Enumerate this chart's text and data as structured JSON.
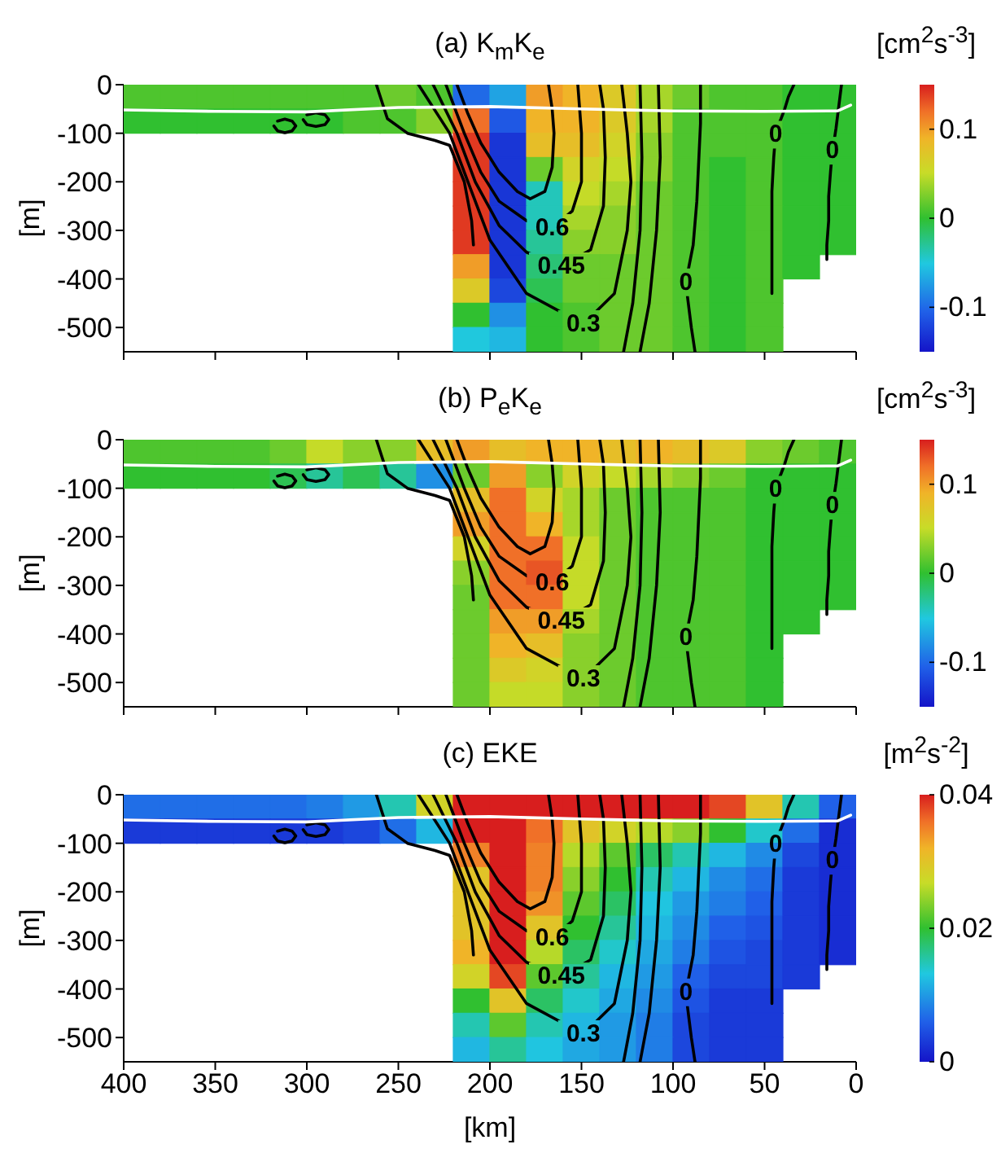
{
  "chart_data": [
    {
      "type": "heatmap",
      "title": "(a) K$_{m}$K$_{e}$",
      "ylabel": "[m]",
      "clabel": "[cm$^{2}$s$^{-3}$]",
      "xlim": [
        400,
        0
      ],
      "xticks": [
        400,
        350,
        300,
        250,
        200,
        150,
        100,
        50,
        0
      ],
      "ylim": [
        -550,
        0
      ],
      "yticks": [
        -500,
        -400,
        -300,
        -200,
        -100,
        0
      ],
      "clim": [
        -0.15,
        0.15
      ],
      "cticks": [
        -0.1,
        0,
        0.1
      ],
      "tick_labels": "y",
      "cells": [
        [
          0.01,
          0.01,
          0.01,
          0.01,
          0.01,
          0.01,
          0.01,
          0.02,
          0.01,
          -0.1,
          -0.07,
          0.1,
          0.09,
          0.07,
          0.04,
          0.02,
          0.01,
          0.01,
          0,
          0
        ],
        [
          0,
          0,
          0,
          0,
          0,
          0,
          0.01,
          0.01,
          0.03,
          0.12,
          -0.11,
          0.09,
          0.09,
          0.07,
          0.04,
          0.01,
          0.01,
          0.01,
          0,
          0
        ],
        [
          null,
          null,
          null,
          null,
          null,
          null,
          null,
          null,
          null,
          0.14,
          -0.13,
          0.08,
          0.08,
          0.06,
          0.03,
          0.01,
          0.01,
          0.01,
          0,
          0
        ],
        [
          null,
          null,
          null,
          null,
          null,
          null,
          null,
          null,
          null,
          0.14,
          -0.13,
          0.02,
          0.06,
          0.05,
          0.03,
          0.01,
          0,
          0.01,
          0,
          0
        ],
        [
          null,
          null,
          null,
          null,
          null,
          null,
          null,
          null,
          null,
          0.14,
          -0.13,
          -0.04,
          0.05,
          0.04,
          0.02,
          0.01,
          0,
          0.01,
          0,
          0
        ],
        [
          null,
          null,
          null,
          null,
          null,
          null,
          null,
          null,
          null,
          0.14,
          -0.13,
          -0.04,
          0.04,
          0.03,
          0.02,
          0.01,
          0,
          0.01,
          0,
          0
        ],
        [
          null,
          null,
          null,
          null,
          null,
          null,
          null,
          null,
          null,
          0.14,
          -0.13,
          -0.03,
          0.03,
          0.03,
          0.02,
          0.01,
          0,
          0.01,
          0,
          0
        ],
        [
          null,
          null,
          null,
          null,
          null,
          null,
          null,
          null,
          null,
          0.1,
          -0.13,
          -0.02,
          0.02,
          0.02,
          0.02,
          0.01,
          0,
          0.01,
          0,
          null
        ],
        [
          null,
          null,
          null,
          null,
          null,
          null,
          null,
          null,
          null,
          0.07,
          -0.12,
          -0.01,
          0.02,
          0.02,
          0.02,
          0.01,
          0,
          0.01,
          null,
          null
        ],
        [
          null,
          null,
          null,
          null,
          null,
          null,
          null,
          null,
          null,
          0,
          -0.08,
          0,
          0.01,
          0.02,
          0.02,
          0.01,
          0,
          0.01,
          null,
          null
        ],
        [
          null,
          null,
          null,
          null,
          null,
          null,
          null,
          null,
          null,
          -0.05,
          -0.06,
          0,
          0.01,
          0.02,
          0.02,
          0.01,
          0,
          0.01,
          null,
          null
        ]
      ],
      "series": [
        {
          "type": "line",
          "color": "#000000",
          "x": [
            218,
            212,
            205,
            195,
            185,
            178,
            170,
            166,
            165,
            166,
            168
          ],
          "values": [
            0,
            -60,
            -120,
            -180,
            -220,
            -235,
            -220,
            -170,
            -100,
            -50,
            0
          ]
        },
        {
          "type": "line",
          "name": "0.6",
          "color": "#000000",
          "x": [
            224,
            214,
            205,
            195,
            180,
            166,
            155,
            150,
            150,
            151,
            152
          ],
          "values": [
            0,
            -100,
            -180,
            -240,
            -280,
            -295,
            -260,
            -200,
            -100,
            -50,
            0
          ]
        },
        {
          "type": "line",
          "name": "0.45",
          "color": "#000000",
          "x": [
            231,
            218,
            208,
            195,
            180,
            161,
            145,
            138,
            137,
            138,
            140
          ],
          "values": [
            0,
            -100,
            -200,
            -290,
            -345,
            -374,
            -340,
            -250,
            -150,
            -50,
            0
          ]
        },
        {
          "type": "line",
          "name": "0.3",
          "color": "#000000",
          "x": [
            239,
            222,
            212,
            200,
            180,
            149,
            132,
            125,
            123,
            125,
            128
          ],
          "values": [
            0,
            -100,
            -200,
            -320,
            -430,
            -493,
            -430,
            -300,
            -200,
            -100,
            0
          ]
        },
        {
          "type": "line",
          "color": "#000000",
          "x": [
            262,
            256,
            245,
            230,
            222,
            214,
            210,
            209
          ],
          "values": [
            0,
            -70,
            -100,
            -115,
            -125,
            -200,
            -280,
            -330
          ]
        },
        {
          "type": "line",
          "color": "#000000",
          "x": [
            118,
            117,
            118,
            122,
            127
          ],
          "values": [
            0,
            -150,
            -300,
            -450,
            -550
          ]
        },
        {
          "type": "line",
          "color": "#000000",
          "x": [
            108,
            107,
            109,
            113,
            118
          ],
          "values": [
            0,
            -150,
            -300,
            -450,
            -550
          ]
        },
        {
          "type": "line",
          "name": "0",
          "color": "#000000",
          "x": [
            85,
            85,
            86,
            87,
            89,
            93,
            92,
            91,
            90,
            89,
            88
          ],
          "values": [
            0,
            -80,
            -160,
            -240,
            -330,
            -407,
            -440,
            -470,
            -500,
            -525,
            -550
          ]
        },
        {
          "type": "line",
          "name": "0",
          "color": "#000000",
          "x": [
            34,
            37,
            39,
            41,
            43,
            44,
            45,
            46,
            46,
            46,
            46
          ],
          "values": [
            0,
            -25,
            -50,
            -70,
            -88,
            -103,
            -150,
            -220,
            -300,
            -370,
            -430
          ]
        },
        {
          "type": "line",
          "name": "0",
          "color": "#000000",
          "x": [
            8,
            9,
            10,
            11,
            12,
            13,
            14,
            15,
            15,
            16,
            16
          ],
          "values": [
            0,
            -30,
            -60,
            -90,
            -115,
            -136,
            -180,
            -230,
            -280,
            -330,
            -360
          ]
        },
        {
          "type": "line",
          "color": "#000000",
          "x": [
            318,
            316,
            312,
            308,
            306,
            308,
            312,
            316
          ],
          "values": [
            -85,
            -95,
            -99,
            -95,
            -85,
            -75,
            -71,
            -75
          ]
        },
        {
          "type": "line",
          "color": "#000000",
          "x": [
            302,
            300,
            295,
            290,
            288,
            290,
            295,
            300
          ],
          "values": [
            -72,
            -82,
            -86,
            -82,
            -72,
            -62,
            -58,
            -62
          ]
        },
        {
          "type": "line",
          "color": "#ffffff",
          "x": [
            400,
            350,
            300,
            250,
            200,
            150,
            100,
            50,
            10,
            3
          ],
          "values": [
            -52,
            -55,
            -56,
            -47,
            -45,
            -50,
            -54,
            -55,
            -54,
            -42
          ]
        }
      ]
    },
    {
      "type": "heatmap",
      "title": "(b) P$_{e}$K$_{e}$",
      "ylabel": "[m]",
      "clabel": "[cm$^{2}$s$^{-3}$]",
      "xlim": [
        400,
        0
      ],
      "xticks": [
        400,
        350,
        300,
        250,
        200,
        150,
        100,
        50,
        0
      ],
      "ylim": [
        -550,
        0
      ],
      "yticks": [
        -500,
        -400,
        -300,
        -200,
        -100,
        0
      ],
      "clim": [
        -0.15,
        0.15
      ],
      "cticks": [
        -0.1,
        0,
        0.1
      ],
      "tick_labels": "y",
      "cells": [
        [
          0.01,
          0.01,
          0.01,
          0.01,
          0.02,
          0.05,
          0.03,
          0.03,
          0.08,
          0.1,
          0.08,
          0.09,
          0.09,
          0.08,
          0.09,
          0.08,
          0.07,
          0.03,
          0.02,
          0.01
        ],
        [
          0,
          0,
          0,
          0,
          -0.01,
          -0.03,
          -0.01,
          -0.03,
          -0.08,
          0.02,
          0.1,
          0.03,
          0.06,
          0.05,
          0.04,
          0.03,
          0.02,
          0,
          0,
          0
        ],
        [
          null,
          null,
          null,
          null,
          null,
          null,
          null,
          null,
          null,
          0.08,
          0.12,
          0.06,
          0.04,
          0.02,
          0.01,
          0.01,
          0.01,
          0,
          0,
          0
        ],
        [
          null,
          null,
          null,
          null,
          null,
          null,
          null,
          null,
          null,
          0.1,
          0.12,
          0.09,
          0.04,
          0.02,
          0.01,
          0.01,
          0.01,
          0,
          0,
          0
        ],
        [
          null,
          null,
          null,
          null,
          null,
          null,
          null,
          null,
          null,
          0.06,
          0.12,
          0.12,
          0.05,
          0.02,
          0.01,
          0.01,
          0.01,
          0,
          0,
          0
        ],
        [
          null,
          null,
          null,
          null,
          null,
          null,
          null,
          null,
          null,
          0.03,
          0.12,
          0.13,
          0.05,
          0.02,
          0.01,
          0.01,
          0.01,
          0,
          0,
          0
        ],
        [
          null,
          null,
          null,
          null,
          null,
          null,
          null,
          null,
          null,
          0.02,
          0.12,
          0.12,
          0.05,
          0.02,
          0.01,
          0.01,
          0.01,
          0,
          0,
          0
        ],
        [
          null,
          null,
          null,
          null,
          null,
          null,
          null,
          null,
          null,
          0.02,
          0.1,
          0.1,
          0.04,
          0.02,
          0.01,
          0.01,
          0.01,
          0,
          0,
          null
        ],
        [
          null,
          null,
          null,
          null,
          null,
          null,
          null,
          null,
          null,
          0.02,
          0.09,
          0.08,
          0.03,
          0.02,
          0.01,
          0.01,
          0.01,
          0,
          null,
          null
        ],
        [
          null,
          null,
          null,
          null,
          null,
          null,
          null,
          null,
          null,
          0.02,
          0.07,
          0.06,
          0.03,
          0.02,
          0.01,
          0.01,
          0.01,
          0,
          null,
          null
        ],
        [
          null,
          null,
          null,
          null,
          null,
          null,
          null,
          null,
          null,
          0.02,
          0.05,
          0.05,
          0.03,
          0.02,
          0.01,
          0.01,
          0.01,
          0,
          null,
          null
        ]
      ],
      "series": [
        {
          "type": "line",
          "color": "#000000",
          "x": [
            218,
            212,
            205,
            195,
            185,
            178,
            170,
            166,
            165,
            166,
            168
          ],
          "values": [
            0,
            -60,
            -120,
            -180,
            -220,
            -235,
            -220,
            -170,
            -100,
            -50,
            0
          ]
        },
        {
          "type": "line",
          "name": "0.6",
          "color": "#000000",
          "x": [
            224,
            214,
            205,
            195,
            180,
            166,
            155,
            150,
            150,
            151,
            152
          ],
          "values": [
            0,
            -100,
            -180,
            -240,
            -280,
            -295,
            -260,
            -200,
            -100,
            -50,
            0
          ]
        },
        {
          "type": "line",
          "name": "0.45",
          "color": "#000000",
          "x": [
            231,
            218,
            208,
            195,
            180,
            161,
            145,
            138,
            137,
            138,
            140
          ],
          "values": [
            0,
            -100,
            -200,
            -290,
            -345,
            -374,
            -340,
            -250,
            -150,
            -50,
            0
          ]
        },
        {
          "type": "line",
          "name": "0.3",
          "color": "#000000",
          "x": [
            239,
            222,
            212,
            200,
            180,
            149,
            132,
            125,
            123,
            125,
            128
          ],
          "values": [
            0,
            -100,
            -200,
            -320,
            -430,
            -493,
            -430,
            -300,
            -200,
            -100,
            0
          ]
        },
        {
          "type": "line",
          "color": "#000000",
          "x": [
            262,
            256,
            245,
            230,
            222,
            214,
            210,
            209
          ],
          "values": [
            0,
            -70,
            -100,
            -115,
            -125,
            -200,
            -280,
            -330
          ]
        },
        {
          "type": "line",
          "color": "#000000",
          "x": [
            118,
            117,
            118,
            122,
            127
          ],
          "values": [
            0,
            -150,
            -300,
            -450,
            -550
          ]
        },
        {
          "type": "line",
          "color": "#000000",
          "x": [
            108,
            107,
            109,
            113,
            118
          ],
          "values": [
            0,
            -150,
            -300,
            -450,
            -550
          ]
        },
        {
          "type": "line",
          "name": "0",
          "color": "#000000",
          "x": [
            85,
            85,
            86,
            87,
            89,
            93,
            92,
            91,
            90,
            89,
            88
          ],
          "values": [
            0,
            -80,
            -160,
            -240,
            -330,
            -407,
            -440,
            -470,
            -500,
            -525,
            -550
          ]
        },
        {
          "type": "line",
          "name": "0",
          "color": "#000000",
          "x": [
            34,
            37,
            39,
            41,
            43,
            44,
            45,
            46,
            46,
            46,
            46
          ],
          "values": [
            0,
            -25,
            -50,
            -70,
            -88,
            -103,
            -150,
            -220,
            -300,
            -370,
            -430
          ]
        },
        {
          "type": "line",
          "name": "0",
          "color": "#000000",
          "x": [
            8,
            9,
            10,
            11,
            12,
            13,
            14,
            15,
            15,
            16,
            16
          ],
          "values": [
            0,
            -30,
            -60,
            -90,
            -115,
            -136,
            -180,
            -230,
            -280,
            -330,
            -360
          ]
        },
        {
          "type": "line",
          "color": "#000000",
          "x": [
            318,
            316,
            312,
            308,
            306,
            308,
            312,
            316
          ],
          "values": [
            -85,
            -95,
            -99,
            -95,
            -85,
            -75,
            -71,
            -75
          ]
        },
        {
          "type": "line",
          "color": "#000000",
          "x": [
            302,
            300,
            295,
            290,
            288,
            290,
            295,
            300
          ],
          "values": [
            -72,
            -82,
            -86,
            -82,
            -72,
            -62,
            -58,
            -62
          ]
        },
        {
          "type": "line",
          "color": "#ffffff",
          "x": [
            400,
            350,
            300,
            250,
            200,
            150,
            100,
            50,
            10,
            3
          ],
          "values": [
            -52,
            -55,
            -56,
            -47,
            -45,
            -50,
            -54,
            -55,
            -54,
            -42
          ]
        }
      ]
    },
    {
      "type": "heatmap",
      "title": "(c) EKE",
      "xlabel": "[km]",
      "ylabel": "[m]",
      "clabel": "[m$^{2}$s$^{-2}$]",
      "xlim": [
        400,
        0
      ],
      "xticks": [
        400,
        350,
        300,
        250,
        200,
        150,
        100,
        50,
        0
      ],
      "ylim": [
        -550,
        0
      ],
      "yticks": [
        -500,
        -400,
        -300,
        -200,
        -100,
        0
      ],
      "clim": [
        0,
        0.04
      ],
      "cticks": [
        0,
        0.02,
        0.04
      ],
      "cells": [
        [
          0.007,
          0.007,
          0.007,
          0.007,
          0.007,
          0.008,
          0.01,
          0.015,
          0.028,
          0.04,
          0.04,
          0.04,
          0.04,
          0.04,
          0.04,
          0.04,
          0.038,
          0.03,
          0.015,
          0.006
        ],
        [
          0.003,
          0.003,
          0.003,
          0.003,
          0.003,
          0.003,
          0.004,
          0.007,
          0.012,
          0.04,
          0.04,
          0.036,
          0.03,
          0.028,
          0.026,
          0.024,
          0.02,
          0.014,
          0.007,
          0.002
        ],
        [
          null,
          null,
          null,
          null,
          null,
          null,
          null,
          null,
          null,
          0.035,
          0.04,
          0.035,
          0.026,
          0.022,
          0.018,
          0.015,
          0.012,
          0.009,
          0.004,
          0.002
        ],
        [
          null,
          null,
          null,
          null,
          null,
          null,
          null,
          null,
          null,
          0.03,
          0.04,
          0.035,
          0.024,
          0.02,
          0.015,
          0.012,
          0.009,
          0.007,
          0.003,
          0.002
        ],
        [
          null,
          null,
          null,
          null,
          null,
          null,
          null,
          null,
          null,
          0.03,
          0.04,
          0.034,
          0.022,
          0.018,
          0.013,
          0.01,
          0.008,
          0.006,
          0.003,
          0.002
        ],
        [
          null,
          null,
          null,
          null,
          null,
          null,
          null,
          null,
          null,
          0.03,
          0.04,
          0.03,
          0.02,
          0.016,
          0.012,
          0.009,
          0.006,
          0.005,
          0.003,
          0.002
        ],
        [
          null,
          null,
          null,
          null,
          null,
          null,
          null,
          null,
          null,
          0.032,
          0.04,
          0.026,
          0.018,
          0.014,
          0.011,
          0.008,
          0.005,
          0.004,
          0.003,
          0.002
        ],
        [
          null,
          null,
          null,
          null,
          null,
          null,
          null,
          null,
          null,
          0.028,
          0.038,
          0.022,
          0.016,
          0.012,
          0.01,
          0.006,
          0.004,
          0.004,
          0.003,
          null
        ],
        [
          null,
          null,
          null,
          null,
          null,
          null,
          null,
          null,
          null,
          0.02,
          0.03,
          0.018,
          0.014,
          0.011,
          0.009,
          0.005,
          0.003,
          0.003,
          null,
          null
        ],
        [
          null,
          null,
          null,
          null,
          null,
          null,
          null,
          null,
          null,
          0.015,
          0.022,
          0.015,
          0.012,
          0.01,
          0.008,
          0.004,
          0.003,
          0.003,
          null,
          null
        ],
        [
          null,
          null,
          null,
          null,
          null,
          null,
          null,
          null,
          null,
          0.012,
          0.016,
          0.013,
          0.011,
          0.01,
          0.008,
          0.004,
          0.003,
          0.003,
          null,
          null
        ]
      ],
      "series": [
        {
          "type": "line",
          "color": "#000000",
          "x": [
            218,
            212,
            205,
            195,
            185,
            178,
            170,
            166,
            165,
            166,
            168
          ],
          "values": [
            0,
            -60,
            -120,
            -180,
            -220,
            -235,
            -220,
            -170,
            -100,
            -50,
            0
          ]
        },
        {
          "type": "line",
          "name": "0.6",
          "color": "#000000",
          "x": [
            224,
            214,
            205,
            195,
            180,
            166,
            155,
            150,
            150,
            151,
            152
          ],
          "values": [
            0,
            -100,
            -180,
            -240,
            -280,
            -295,
            -260,
            -200,
            -100,
            -50,
            0
          ]
        },
        {
          "type": "line",
          "name": "0.45",
          "color": "#000000",
          "x": [
            231,
            218,
            208,
            195,
            180,
            161,
            145,
            138,
            137,
            138,
            140
          ],
          "values": [
            0,
            -100,
            -200,
            -290,
            -345,
            -374,
            -340,
            -250,
            -150,
            -50,
            0
          ]
        },
        {
          "type": "line",
          "name": "0.3",
          "color": "#000000",
          "x": [
            239,
            222,
            212,
            200,
            180,
            149,
            132,
            125,
            123,
            125,
            128
          ],
          "values": [
            0,
            -100,
            -200,
            -320,
            -430,
            -493,
            -430,
            -300,
            -200,
            -100,
            0
          ]
        },
        {
          "type": "line",
          "color": "#000000",
          "x": [
            262,
            256,
            245,
            230,
            222,
            214,
            210,
            209
          ],
          "values": [
            0,
            -70,
            -100,
            -115,
            -125,
            -200,
            -280,
            -330
          ]
        },
        {
          "type": "line",
          "color": "#000000",
          "x": [
            118,
            117,
            118,
            122,
            127
          ],
          "values": [
            0,
            -150,
            -300,
            -450,
            -550
          ]
        },
        {
          "type": "line",
          "color": "#000000",
          "x": [
            108,
            107,
            109,
            113,
            118
          ],
          "values": [
            0,
            -150,
            -300,
            -450,
            -550
          ]
        },
        {
          "type": "line",
          "name": "0",
          "color": "#000000",
          "x": [
            85,
            85,
            86,
            87,
            89,
            93,
            92,
            91,
            90,
            89,
            88
          ],
          "values": [
            0,
            -80,
            -160,
            -240,
            -330,
            -407,
            -440,
            -470,
            -500,
            -525,
            -550
          ]
        },
        {
          "type": "line",
          "name": "0",
          "color": "#000000",
          "x": [
            34,
            37,
            39,
            41,
            43,
            44,
            45,
            46,
            46,
            46,
            46
          ],
          "values": [
            0,
            -25,
            -50,
            -70,
            -88,
            -103,
            -150,
            -220,
            -300,
            -370,
            -430
          ]
        },
        {
          "type": "line",
          "name": "0",
          "color": "#000000",
          "x": [
            8,
            9,
            10,
            11,
            12,
            13,
            14,
            15,
            15,
            16,
            16
          ],
          "values": [
            0,
            -30,
            -60,
            -90,
            -115,
            -136,
            -180,
            -230,
            -280,
            -330,
            -360
          ]
        },
        {
          "type": "line",
          "color": "#000000",
          "x": [
            318,
            316,
            312,
            308,
            306,
            308,
            312,
            316
          ],
          "values": [
            -85,
            -95,
            -99,
            -95,
            -85,
            -75,
            -71,
            -75
          ]
        },
        {
          "type": "line",
          "color": "#000000",
          "x": [
            302,
            300,
            295,
            290,
            288,
            290,
            295,
            300
          ],
          "values": [
            -72,
            -82,
            -86,
            -82,
            -72,
            -62,
            -58,
            -62
          ]
        },
        {
          "type": "line",
          "color": "#ffffff",
          "x": [
            400,
            350,
            300,
            250,
            200,
            150,
            100,
            50,
            10,
            3
          ],
          "values": [
            -52,
            -55,
            -56,
            -47,
            -45,
            -50,
            -54,
            -55,
            -54,
            -42
          ]
        }
      ]
    }
  ]
}
